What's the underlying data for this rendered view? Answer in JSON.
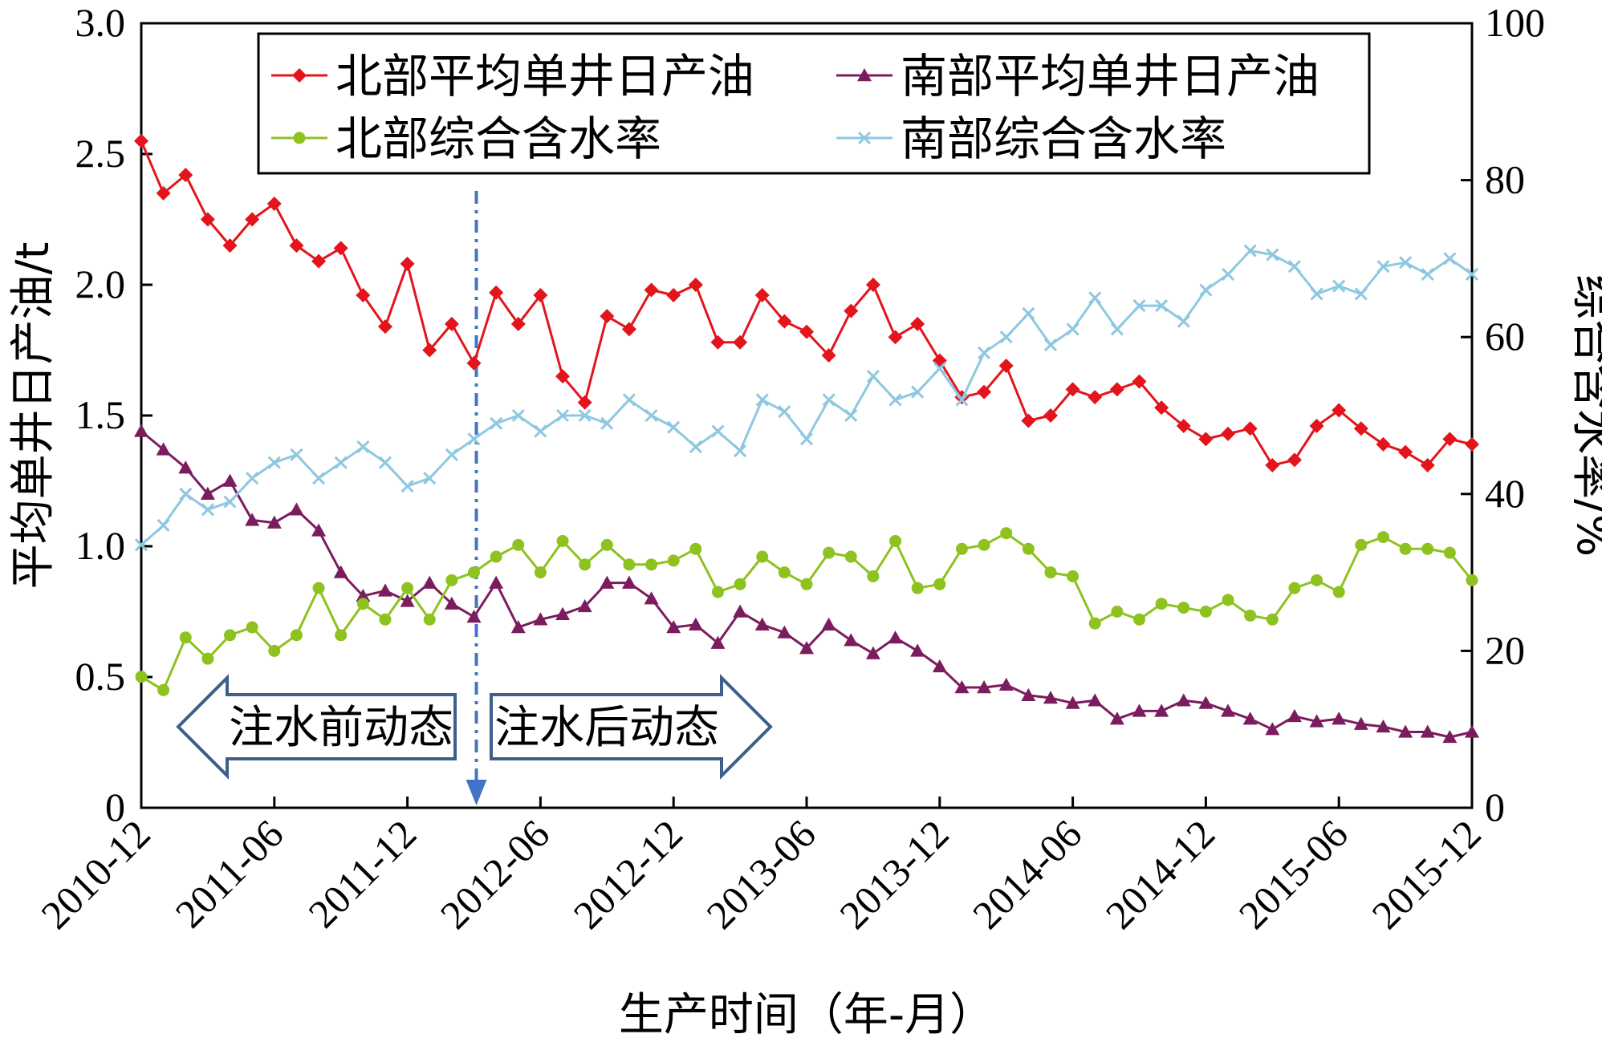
{
  "chart_data": {
    "type": "line",
    "xlabel": "生产时间（年-月）",
    "ylabel_left": "平均单井日产油/t",
    "ylabel_right": "综合含水率/%",
    "x_tick_labels": [
      "2010-12",
      "2011-06",
      "2011-12",
      "2012-06",
      "2012-12",
      "2013-06",
      "2013-12",
      "2014-06",
      "2014-12",
      "2015-06",
      "2015-12"
    ],
    "x_range": [
      "2010-12",
      "2015-12"
    ],
    "ylim_left": [
      0,
      3.0
    ],
    "y_ticks_left": [
      "0",
      "0.5",
      "1.0",
      "1.5",
      "2.0",
      "2.5",
      "3.0"
    ],
    "ylim_right": [
      0,
      100
    ],
    "y_ticks_right": [
      "0",
      "20",
      "40",
      "60",
      "80",
      "100"
    ],
    "grid": false,
    "legend_position": "top",
    "series": [
      {
        "name": "北部平均单井日产油",
        "axis": "left",
        "color": "#e3141b",
        "marker": "diamond",
        "values": [
          2.55,
          2.35,
          2.42,
          2.25,
          2.15,
          2.25,
          2.31,
          2.15,
          2.09,
          2.14,
          1.96,
          1.84,
          2.08,
          1.75,
          1.85,
          1.7,
          1.97,
          1.85,
          1.96,
          1.65,
          1.55,
          1.88,
          1.83,
          1.98,
          1.96,
          2.0,
          1.78,
          1.78,
          1.96,
          1.86,
          1.82,
          1.73,
          1.9,
          2.0,
          1.8,
          1.85,
          1.71,
          1.57,
          1.59,
          1.69,
          1.48,
          1.5,
          1.6,
          1.57,
          1.6,
          1.63,
          1.53,
          1.46,
          1.41,
          1.43,
          1.45,
          1.31,
          1.33,
          1.46,
          1.52,
          1.45,
          1.39,
          1.36,
          1.31,
          1.41,
          1.39
        ]
      },
      {
        "name": "南部平均单井日产油",
        "axis": "left",
        "color": "#7b1c5e",
        "marker": "triangle",
        "values": [
          1.44,
          1.37,
          1.3,
          1.2,
          1.25,
          1.1,
          1.09,
          1.14,
          1.06,
          0.9,
          0.81,
          0.83,
          0.79,
          0.86,
          0.78,
          0.73,
          0.86,
          0.69,
          0.72,
          0.74,
          0.77,
          0.86,
          0.86,
          0.8,
          0.69,
          0.7,
          0.63,
          0.75,
          0.7,
          0.67,
          0.61,
          0.7,
          0.64,
          0.59,
          0.65,
          0.6,
          0.54,
          0.46,
          0.46,
          0.47,
          0.43,
          0.42,
          0.4,
          0.41,
          0.34,
          0.37,
          0.37,
          0.41,
          0.4,
          0.37,
          0.34,
          0.3,
          0.35,
          0.33,
          0.34,
          0.32,
          0.31,
          0.29,
          0.29,
          0.27,
          0.29
        ]
      },
      {
        "name": "北部综合含水率",
        "axis": "right",
        "color": "#8dc21f",
        "marker": "circle",
        "values": [
          16.7,
          15.0,
          21.7,
          19.0,
          22.0,
          23.0,
          20.0,
          22.0,
          28.0,
          22.0,
          26.0,
          24.0,
          28.0,
          24.0,
          29.0,
          30.0,
          32.0,
          33.5,
          30.0,
          34.0,
          31.0,
          33.5,
          31.0,
          31.0,
          31.5,
          33.0,
          27.5,
          28.5,
          32.0,
          30.0,
          28.5,
          32.5,
          32.0,
          29.5,
          34.0,
          28.0,
          28.5,
          33.0,
          33.5,
          35.0,
          33.0,
          30.0,
          29.5,
          23.5,
          25.0,
          24.0,
          26.0,
          25.5,
          25.0,
          26.5,
          24.5,
          24.0,
          28.0,
          29.0,
          27.5,
          33.5,
          34.5,
          33.0,
          33.0,
          32.5,
          29.0
        ]
      },
      {
        "name": "南部综合含水率",
        "axis": "right",
        "color": "#8ec8e0",
        "marker": "x",
        "values": [
          33.5,
          36.0,
          40.0,
          38.0,
          39.0,
          42.0,
          44.0,
          45.0,
          42.0,
          44.0,
          46.0,
          44.0,
          41.0,
          42.0,
          45.0,
          47.0,
          49.0,
          50.0,
          48.0,
          50.0,
          50.0,
          49.0,
          52.0,
          50.0,
          48.5,
          46.0,
          48.0,
          45.5,
          52.0,
          50.5,
          47.0,
          52.0,
          50.0,
          55.0,
          52.0,
          53.0,
          56.0,
          52.0,
          58.0,
          60.0,
          63.0,
          59.0,
          61.0,
          65.0,
          61.0,
          64.0,
          64.0,
          62.0,
          66.0,
          68.0,
          71.0,
          70.5,
          69.0,
          65.5,
          66.5,
          65.5,
          69.0,
          69.5,
          68.0,
          70.0,
          68.0
        ]
      }
    ],
    "annotations": [
      {
        "text": "注水前动态",
        "direction": "left"
      },
      {
        "text": "注水后动态",
        "direction": "right"
      }
    ],
    "marker_line": {
      "index": 15,
      "color": "#4472c4"
    }
  }
}
